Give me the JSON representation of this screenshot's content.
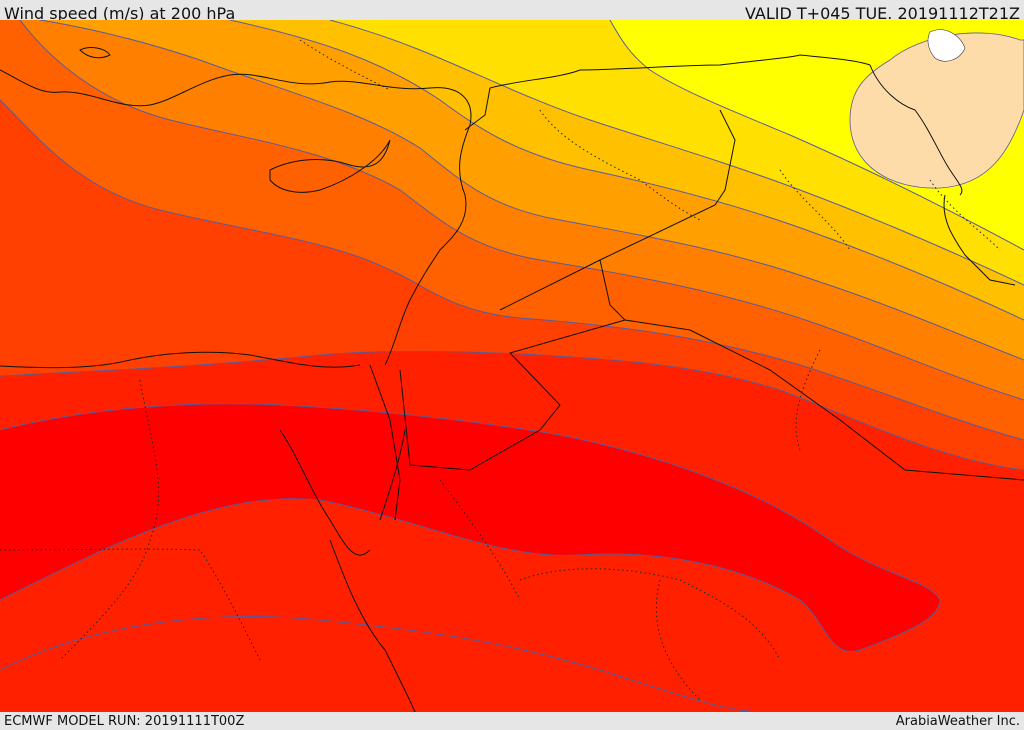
{
  "header": {
    "title": "Wind speed (m/s) at 200 hPa",
    "valid": "VALID T+045 TUE. 20191112T21Z"
  },
  "footer": {
    "model_run": "ECMWF MODEL RUN: 20191111T00Z",
    "credit": "ArabiaWeather Inc."
  },
  "colors": {
    "band_slow": "#ffff00",
    "band_2": "#ffe000",
    "band_3": "#ffc000",
    "band_4": "#ffa000",
    "band_5": "#ff8000",
    "band_6": "#ff6000",
    "band_7": "#ff4000",
    "band_8": "#ff2000",
    "band_core": "#ff0000",
    "low_speed_patch": "#fedcaa",
    "isotach": "#5a5a9a",
    "border": "#111111"
  }
}
